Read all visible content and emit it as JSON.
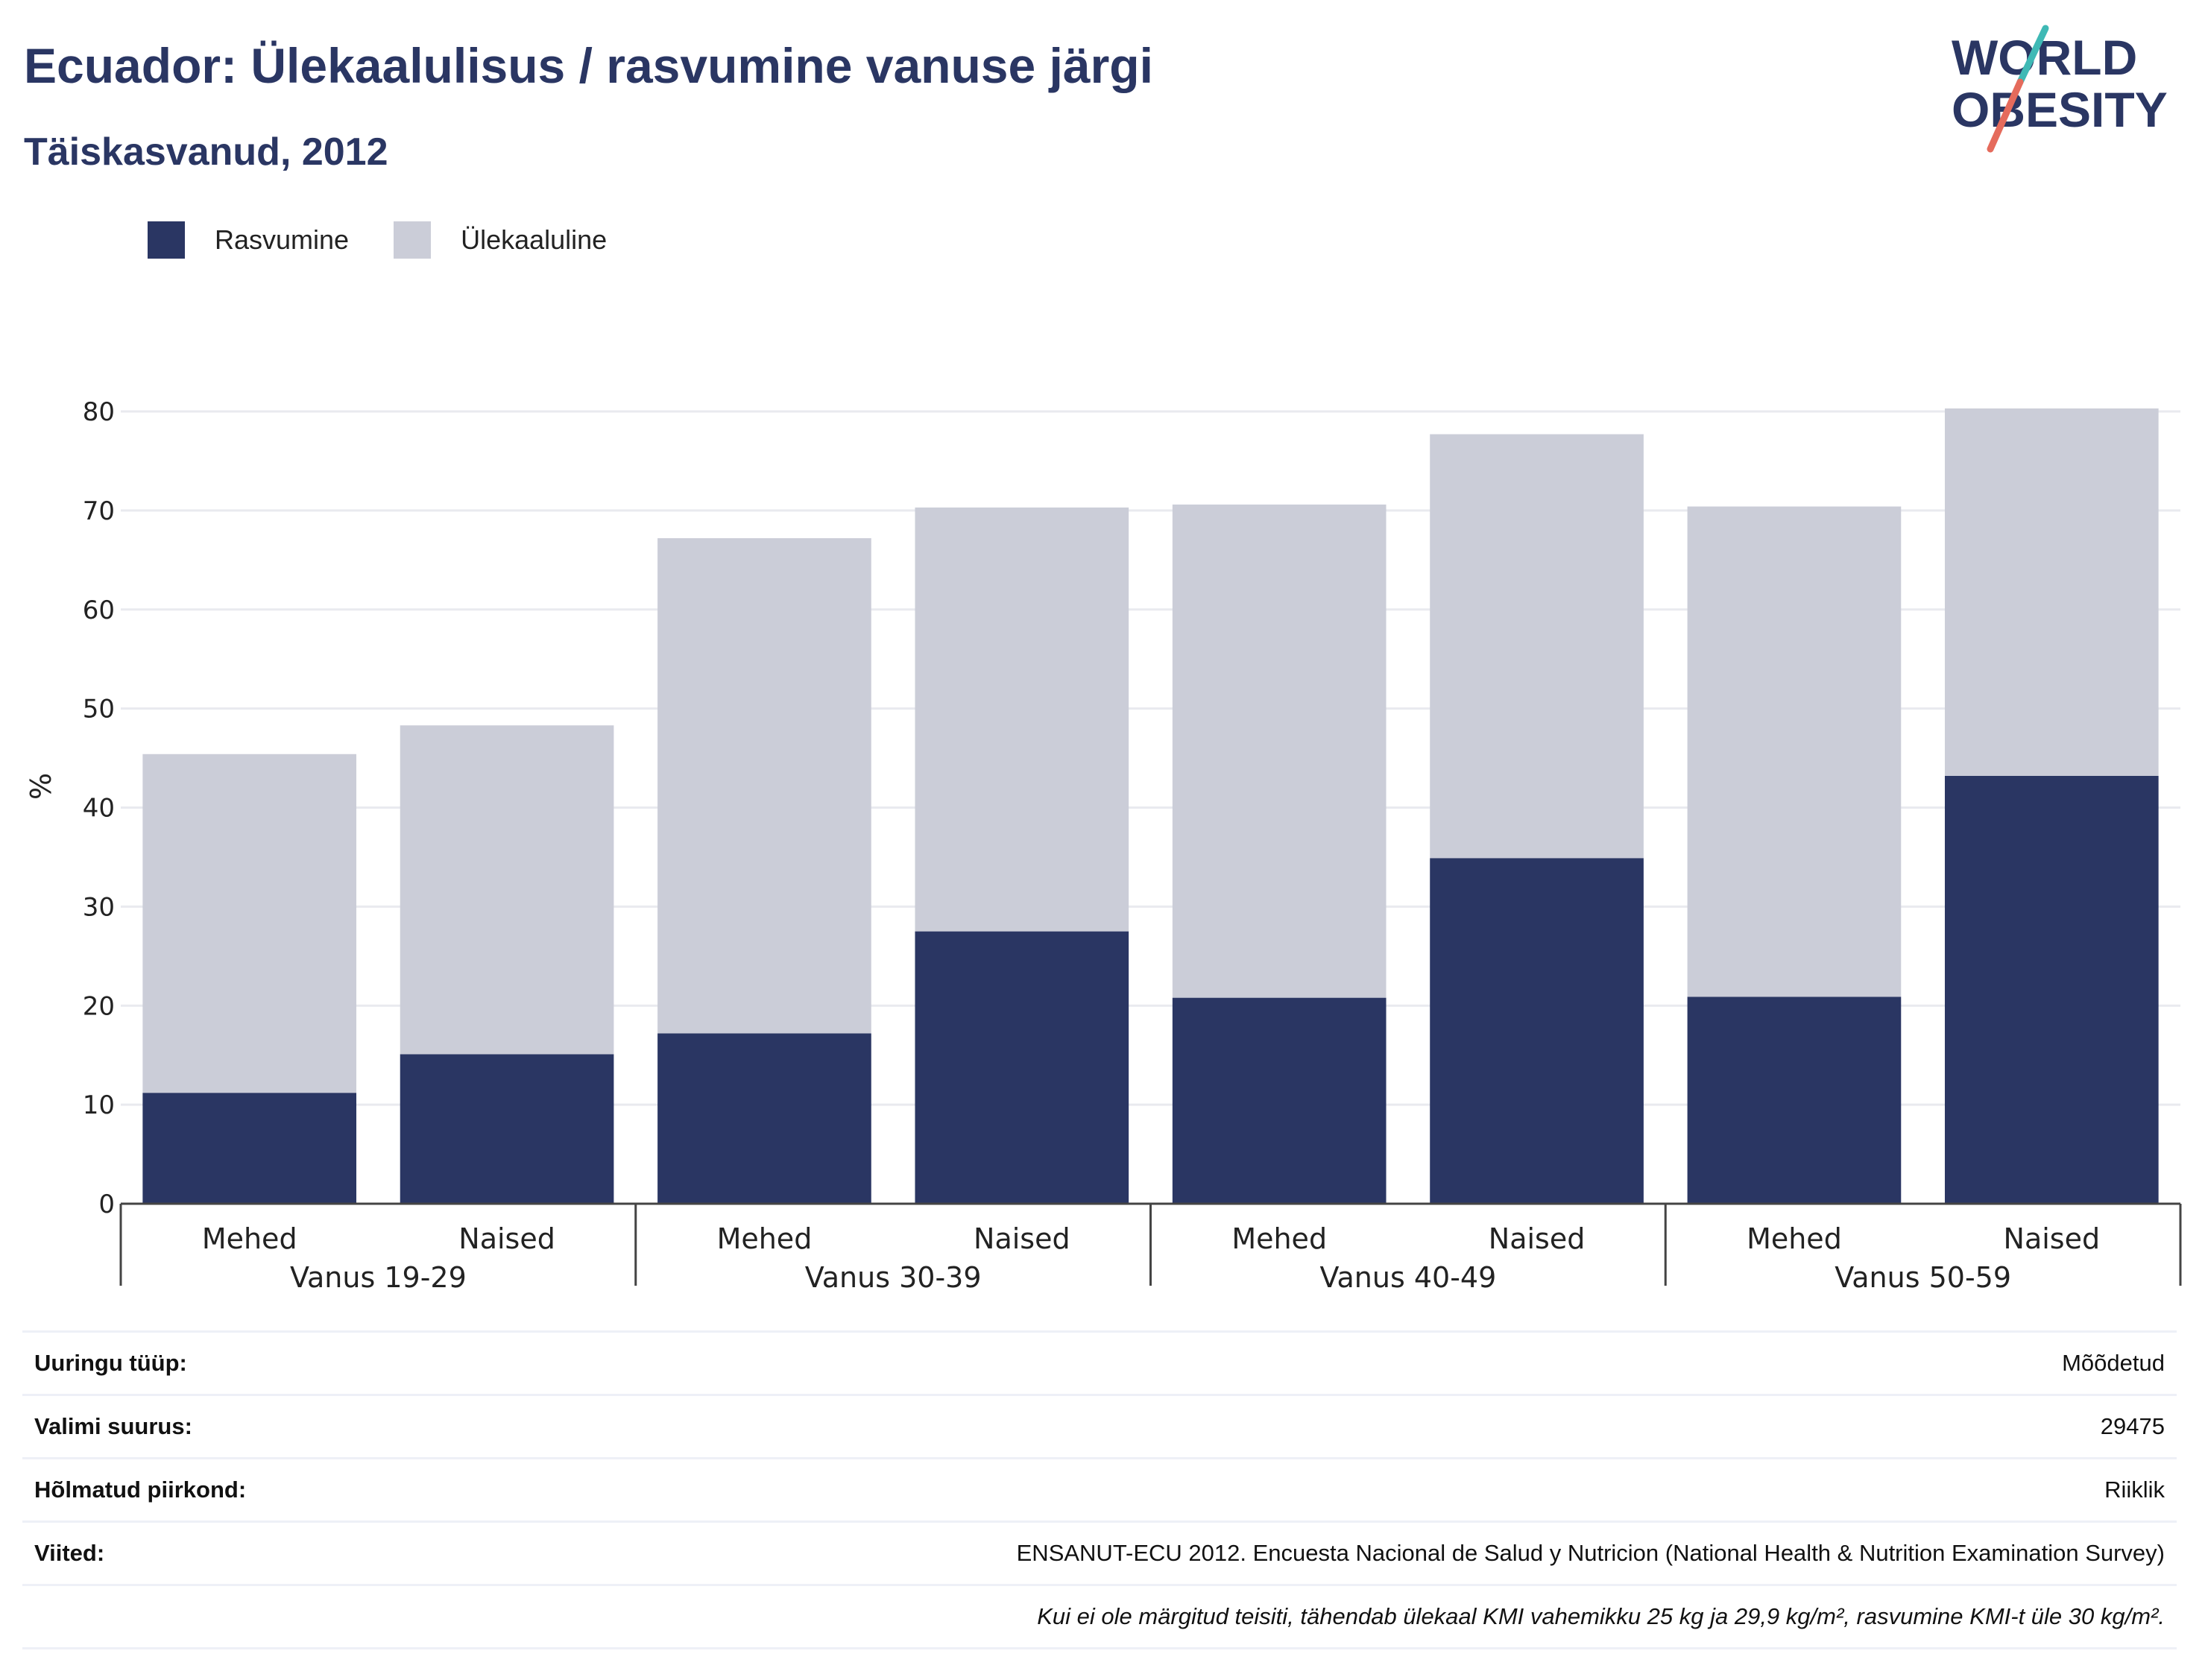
{
  "header": {
    "title": "Ecuador: Ülekaalulisus / rasvumine vanuse järgi",
    "subtitle": "Täiskasvanud, 2012"
  },
  "logo": {
    "line1": "WORLD",
    "line2": "OBESITY"
  },
  "colors": {
    "obesity": "#2a3663",
    "overweight": "#cbcdd8",
    "text": "#2a3663",
    "logo_slash_top": "#3fb9b5",
    "logo_slash_bottom": "#e56b5c"
  },
  "chart_data": {
    "type": "bar",
    "stacked": true,
    "ylabel": "%",
    "ylim": [
      0,
      80
    ],
    "yticks": [
      0,
      10,
      20,
      30,
      40,
      50,
      60,
      70,
      80
    ],
    "grid": true,
    "legend_position": "top-left",
    "groups": [
      "Vanus 19-29",
      "Vanus 30-39",
      "Vanus 40-49",
      "Vanus 50-59"
    ],
    "categories": [
      "Mehed",
      "Naised",
      "Mehed",
      "Naised",
      "Mehed",
      "Naised",
      "Mehed",
      "Naised"
    ],
    "series": [
      {
        "name": "Rasvumine",
        "color": "#2a3663",
        "values": [
          11.2,
          15.1,
          17.2,
          27.5,
          20.8,
          34.9,
          20.9,
          43.2
        ]
      },
      {
        "name": "Ülekaaluline",
        "color": "#cbcdd8",
        "values": [
          34.2,
          33.2,
          50.0,
          42.8,
          49.8,
          42.8,
          49.5,
          37.1
        ]
      }
    ]
  },
  "info": {
    "rows": [
      {
        "label": "Uuringu tüüp:",
        "value": "Mõõdetud"
      },
      {
        "label": "Valimi suurus:",
        "value": "29475"
      },
      {
        "label": "Hõlmatud piirkond:",
        "value": "Riiklik"
      },
      {
        "label": "Viited:",
        "value": "ENSANUT-ECU 2012. Encuesta Nacional de Salud y Nutricion (National Health & Nutrition Examination Survey)"
      }
    ],
    "note": "Kui ei ole märgitud teisiti, tähendab ülekaal KMI vahemikku 25 kg ja 29,9 kg/m², rasvumine KMI-t üle 30 kg/m²."
  }
}
